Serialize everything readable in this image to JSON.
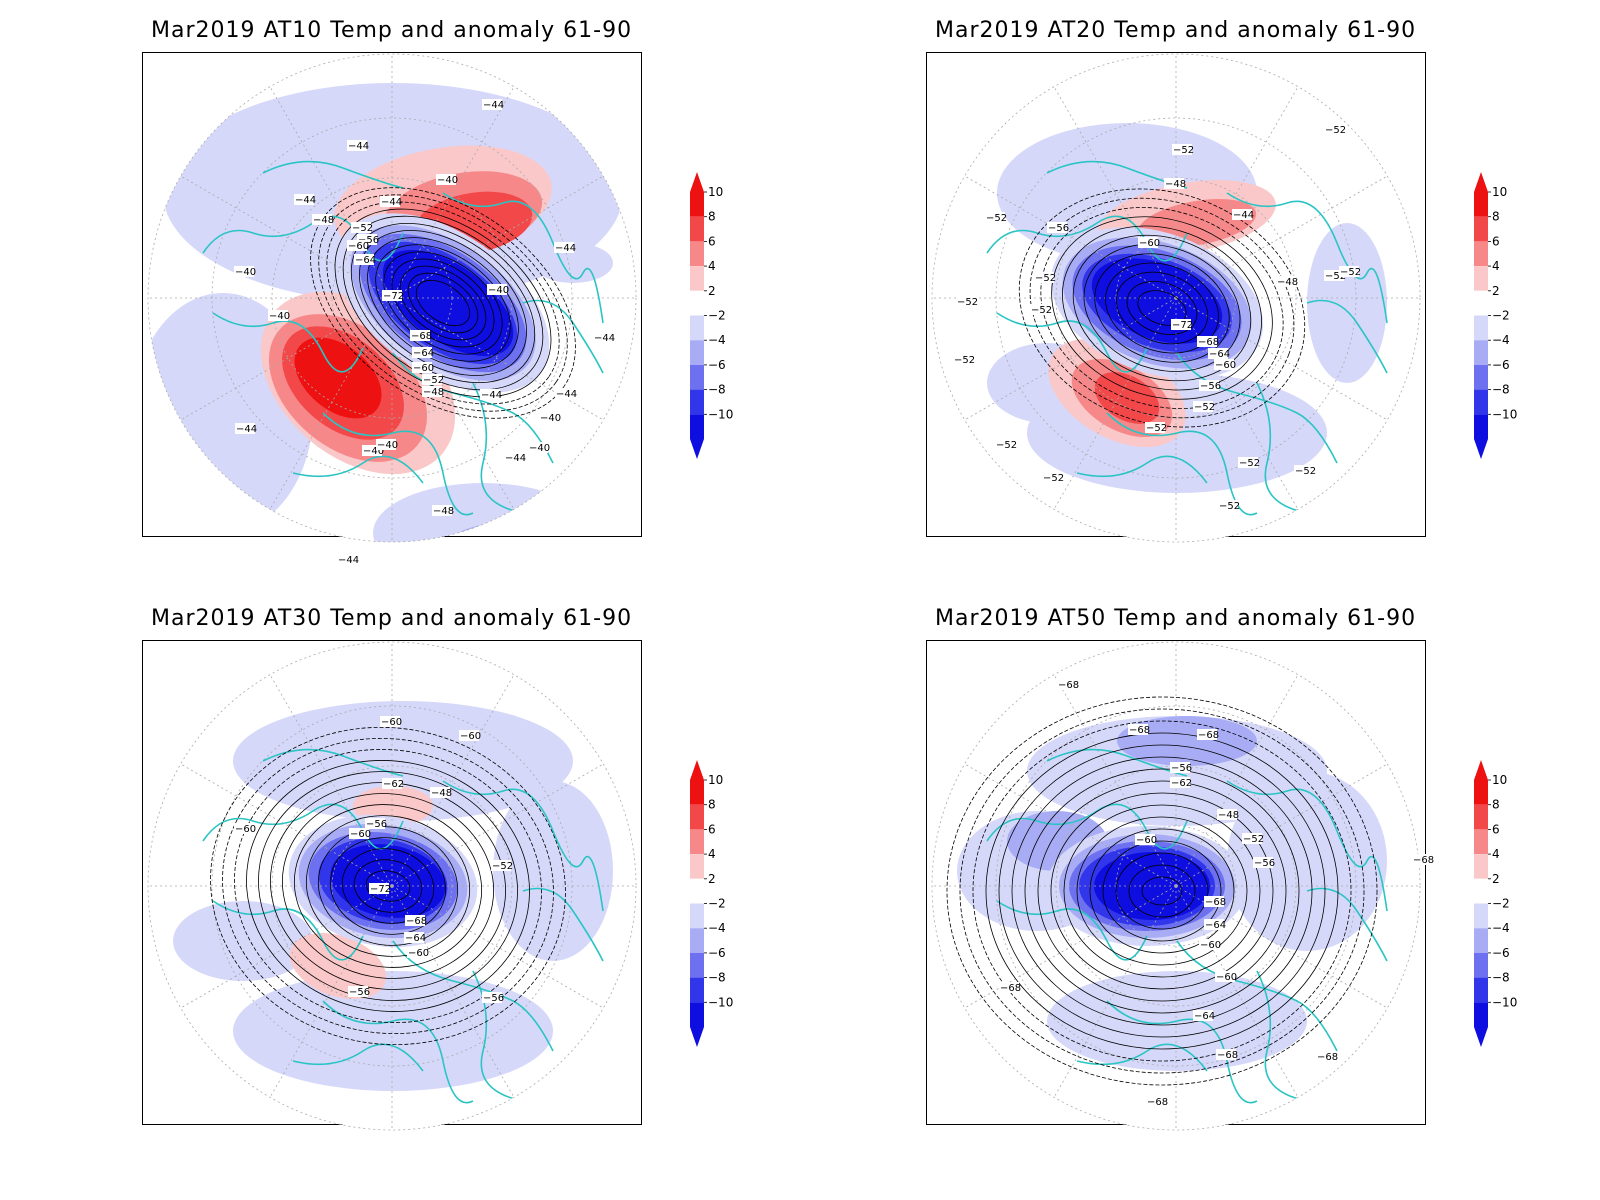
{
  "colors": {
    "coast": "#2bc4c4",
    "graticule": "#aaaaaa",
    "contour": "#000000",
    "scale": [
      {
        "lo": 8,
        "hi": 10,
        "color": "#ee1111"
      },
      {
        "lo": 6,
        "hi": 8,
        "color": "#f2484a"
      },
      {
        "lo": 4,
        "hi": 6,
        "color": "#f7888a"
      },
      {
        "lo": 2,
        "hi": 4,
        "color": "#fac8c8"
      },
      {
        "lo": -2,
        "hi": 2,
        "color": "#ffffff"
      },
      {
        "lo": -4,
        "hi": -2,
        "color": "#d6d8fa"
      },
      {
        "lo": -6,
        "hi": -4,
        "color": "#a8acf5"
      },
      {
        "lo": -8,
        "hi": -6,
        "color": "#6d71f0"
      },
      {
        "lo": -10,
        "hi": -8,
        "color": "#3236ea"
      },
      {
        "lo": -99,
        "hi": -10,
        "color": "#0e0ee0"
      }
    ]
  },
  "colorbar": {
    "labels": [
      "10",
      "8",
      "6",
      "4",
      "2",
      "−2",
      "−4",
      "−6",
      "−8",
      "−10"
    ]
  },
  "panels": [
    {
      "title": "Mar2019 AT10 Temp and anomaly 61-90",
      "labels": [
        "-44",
        "-44",
        "-44",
        "-44",
        "-40",
        "-44",
        "-48",
        "-52",
        "-56",
        "-60",
        "-64",
        "-72",
        "-40",
        "-40",
        "-40",
        "-40",
        "-68",
        "-64",
        "-60",
        "-52",
        "-48",
        "-44",
        "-44",
        "-40",
        "-40",
        "-44",
        "-44",
        "-40",
        "-48",
        "-40",
        "-44",
        "-44"
      ]
    },
    {
      "title": "Mar2019 AT20 Temp and anomaly 61-90",
      "labels": [
        "-52",
        "-52",
        "-52",
        "-48",
        "-44",
        "-56",
        "-60",
        "-52",
        "-52",
        "-52",
        "-52",
        "-52",
        "-48",
        "-72",
        "-68",
        "-64",
        "-60",
        "-56",
        "-52",
        "-52",
        "-52",
        "-52",
        "-52",
        "-52",
        "-52",
        "-52"
      ]
    },
    {
      "title": "Mar2019 AT30 Temp and anomaly 61-90",
      "labels": [
        "-60",
        "-60",
        "-62",
        "-48",
        "-60",
        "-56",
        "-60",
        "-52",
        "-72",
        "-68",
        "-64",
        "-60",
        "-56",
        "-56"
      ]
    },
    {
      "title": "Mar2019 AT50 Temp and anomaly 61-90",
      "labels": [
        "-68",
        "-68",
        "-68",
        "-56",
        "-62",
        "-48",
        "-52",
        "-60",
        "-56",
        "-68",
        "-64",
        "-60",
        "-60",
        "-64",
        "-68",
        "-68",
        "-68",
        "-68",
        "-68"
      ]
    }
  ]
}
